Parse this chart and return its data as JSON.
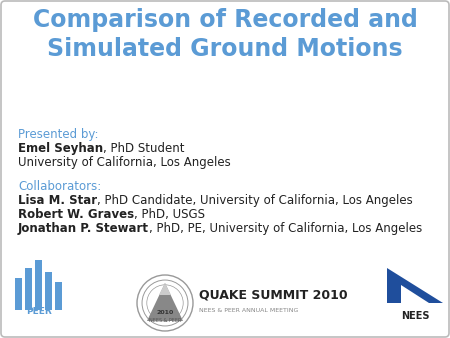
{
  "title_line1": "Comparison of Recorded and",
  "title_line2": "Simulated Ground Motions",
  "title_color": "#5B9BD5",
  "title_fontsize": 17,
  "presented_by_label": "Presented by:",
  "presenter_bold": "Emel Seyhan",
  "presenter_rest": ", PhD Student",
  "presenter_affil": "University of California, Los Angeles",
  "collaborators_label": "Collaborators:",
  "collab_color": "#5B9BD5",
  "collab1_bold": "Lisa M. Star",
  "collab1_rest": ", PhD Candidate, University of California, Los Angeles",
  "collab2_bold": "Robert W. Graves",
  "collab2_rest": ", PhD, USGS",
  "collab3_bold": "Jonathan P. Stewart",
  "collab3_rest": ", PhD, PE, University of California, Los Angeles",
  "background_color": "#FFFFFF",
  "border_color": "#BBBBBB",
  "text_color": "#222222",
  "body_fontsize": 8.5,
  "label_fontsize": 8.5,
  "nees_text": "NEES",
  "peer_text": "PEER",
  "quake_text": "QUAKE SUMMIT 2010",
  "quake_sub": "NEES & PEER ANNUAL MEETING",
  "peer_color": "#5B9BD5",
  "nees_color": "#1F4E9C"
}
